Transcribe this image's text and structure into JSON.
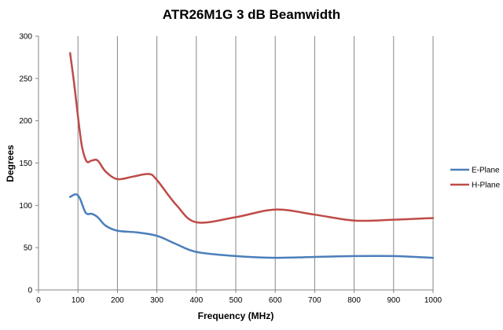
{
  "chart_data": {
    "type": "line",
    "title": "ATR26M1G 3 dB Beamwidth",
    "xlabel": "Frequency (MHz)",
    "ylabel": "Degrees",
    "xlim": [
      0,
      1000
    ],
    "ylim": [
      0,
      300
    ],
    "xticks": [
      0,
      100,
      200,
      300,
      400,
      500,
      600,
      700,
      800,
      900,
      1000
    ],
    "yticks": [
      0,
      50,
      100,
      150,
      200,
      250,
      300
    ],
    "grid": "vertical",
    "legend_position": "right",
    "series": [
      {
        "name": "E-Plane",
        "color": "#4a7ebb",
        "x": [
          80,
          95,
          105,
          120,
          135,
          150,
          170,
          200,
          250,
          300,
          350,
          400,
          500,
          600,
          700,
          800,
          900,
          1000
        ],
        "y": [
          110,
          113,
          108,
          91,
          90,
          86,
          76,
          70,
          68,
          64,
          54,
          45,
          40,
          38,
          39,
          40,
          40,
          38
        ]
      },
      {
        "name": "H-Plane",
        "color": "#be4b48",
        "x": [
          80,
          90,
          100,
          110,
          122,
          135,
          150,
          170,
          200,
          240,
          280,
          300,
          350,
          400,
          500,
          600,
          700,
          800,
          900,
          1000
        ],
        "y": [
          280,
          245,
          205,
          170,
          152,
          153,
          153,
          140,
          131,
          134,
          137,
          130,
          100,
          80,
          86,
          95,
          89,
          82,
          83,
          85
        ]
      }
    ]
  }
}
